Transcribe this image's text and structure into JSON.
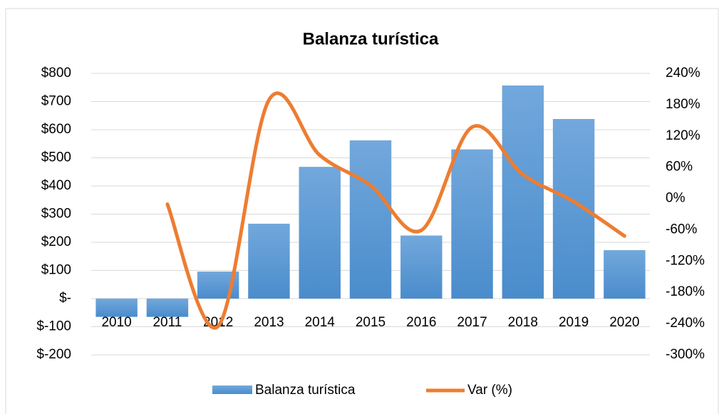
{
  "chart_data": {
    "type": "bar",
    "title": "Balanza turística",
    "categories": [
      "2010",
      "2011",
      "2012",
      "2013",
      "2014",
      "2015",
      "2016",
      "2017",
      "2018",
      "2019",
      "2020"
    ],
    "series": [
      {
        "name": "Balanza turística",
        "type": "bar",
        "color": "#5b9bd5",
        "values": [
          -65,
          -65,
          96,
          266,
          468,
          562,
          224,
          530,
          757,
          638,
          172
        ]
      },
      {
        "name": "Var (%)",
        "type": "line",
        "axis": "y2",
        "color": "#ed7d31",
        "values": [
          null,
          -11,
          -245,
          189,
          83,
          25,
          -61,
          137,
          46,
          -6,
          -72
        ]
      }
    ],
    "ylim": [
      -200,
      800
    ],
    "yticks": [
      {
        "value": -200,
        "label": "$-200"
      },
      {
        "value": -100,
        "label": "$-100"
      },
      {
        "value": 0,
        "label": "$-"
      },
      {
        "value": 100,
        "label": "$100"
      },
      {
        "value": 200,
        "label": "$200"
      },
      {
        "value": 300,
        "label": "$300"
      },
      {
        "value": 400,
        "label": "$400"
      },
      {
        "value": 500,
        "label": "$500"
      },
      {
        "value": 600,
        "label": "$600"
      },
      {
        "value": 700,
        "label": "$700"
      },
      {
        "value": 800,
        "label": "$800"
      }
    ],
    "y2lim": [
      -300,
      240
    ],
    "y2ticks": [
      {
        "value": -300,
        "label": "-300%"
      },
      {
        "value": -240,
        "label": "-240%"
      },
      {
        "value": -180,
        "label": "-180%"
      },
      {
        "value": -120,
        "label": "-120%"
      },
      {
        "value": -60,
        "label": "-60%"
      },
      {
        "value": 0,
        "label": "0%"
      },
      {
        "value": 60,
        "label": "60%"
      },
      {
        "value": 120,
        "label": "120%"
      },
      {
        "value": 180,
        "label": "180%"
      },
      {
        "value": 240,
        "label": "240%"
      }
    ],
    "grid": true,
    "legend": "bottom"
  }
}
